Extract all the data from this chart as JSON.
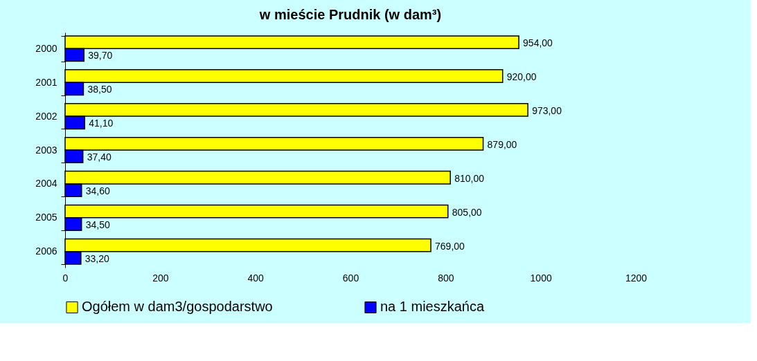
{
  "chart_data": {
    "type": "bar",
    "orientation": "horizontal",
    "title": "w mieście Prudnik (w dam³)",
    "categories": [
      "2000",
      "2001",
      "2002",
      "2003",
      "2004",
      "2005",
      "2006"
    ],
    "series": [
      {
        "name": "Ogółem w dam3/gospodarstwo",
        "color": "#ffff00",
        "values": [
          954,
          920,
          973,
          879,
          810,
          805,
          769
        ],
        "value_labels": [
          "954,00",
          "920,00",
          "973,00",
          "879,00",
          "810,00",
          "805,00",
          "769,00"
        ]
      },
      {
        "name": "na 1 mieszkańca",
        "color": "#0000ff",
        "values": [
          39.7,
          38.5,
          41.1,
          37.4,
          34.6,
          34.5,
          33.2
        ],
        "value_labels": [
          "39,70",
          "38,50",
          "41,10",
          "37,40",
          "34,60",
          "34,50",
          "33,20"
        ]
      }
    ],
    "xlim": [
      0,
      1200
    ],
    "xticks": [
      0,
      200,
      400,
      600,
      800,
      1000,
      1200
    ],
    "grid": false,
    "legend": "bottom"
  }
}
